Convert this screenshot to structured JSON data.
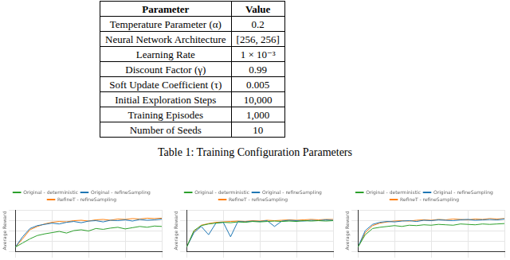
{
  "table": {
    "header": [
      "Parameter",
      "Value"
    ],
    "rows": [
      [
        "Temperature Parameter (α)",
        "0.2"
      ],
      [
        "Neural Network Architecture",
        "[256, 256]"
      ],
      [
        "Learning Rate",
        "1 × 10⁻³"
      ],
      [
        "Discount Factor (γ)",
        "0.99"
      ],
      [
        "Soft Update Coefficient (τ)",
        "0.005"
      ],
      [
        "Initial Exploration Steps",
        "10,000"
      ],
      [
        "Training Episodes",
        "1,000"
      ],
      [
        "Number of Seeds",
        "10"
      ]
    ]
  },
  "caption": "Table 1: Training Configuration Parameters",
  "chart_data": [
    {
      "type": "line",
      "ylabel": "Average Reward",
      "legend": "top",
      "grid": true,
      "tick_labels": false,
      "x": [
        0,
        50,
        100,
        150,
        200,
        250,
        300,
        350,
        400,
        450,
        500,
        550,
        600,
        650,
        700,
        750,
        800,
        850,
        900,
        950,
        1000
      ],
      "xlim": [
        0,
        1000
      ],
      "xticks": [
        0,
        250,
        500,
        750,
        1000
      ],
      "ylim": [
        0,
        100
      ],
      "yticks": [
        0,
        25,
        50,
        75,
        100
      ],
      "series": [
        {
          "name": "Original - deterministic",
          "color": "#2ca02c",
          "values": [
            10,
            20,
            30,
            38,
            42,
            45,
            48,
            44,
            50,
            52,
            49,
            55,
            53,
            56,
            58,
            54,
            57,
            60,
            58,
            61,
            60
          ]
        },
        {
          "name": "Original - refineSampling",
          "color": "#1f77b4",
          "values": [
            10,
            35,
            55,
            62,
            65,
            68,
            66,
            70,
            72,
            69,
            73,
            74,
            71,
            75,
            74,
            76,
            73,
            77,
            75,
            76,
            78
          ]
        },
        {
          "name": "RefineT - refineSampling",
          "color": "#ff7f0e",
          "values": [
            10,
            30,
            52,
            60,
            66,
            70,
            72,
            71,
            74,
            75,
            73,
            76,
            77,
            75,
            78,
            77,
            79,
            78,
            80,
            79,
            80
          ]
        }
      ]
    },
    {
      "type": "line",
      "ylabel": "Average Reward",
      "legend": "top",
      "grid": true,
      "tick_labels": false,
      "x": [
        0,
        50,
        100,
        150,
        200,
        250,
        300,
        350,
        400,
        450,
        500,
        550,
        600,
        650,
        700,
        750,
        800,
        850,
        900,
        950,
        1000
      ],
      "xlim": [
        0,
        1000
      ],
      "xticks": [
        0,
        250,
        500,
        750,
        1000
      ],
      "ylim": [
        0,
        100
      ],
      "yticks": [
        0,
        25,
        50,
        75,
        100
      ],
      "series": [
        {
          "name": "Original - deterministic",
          "color": "#2ca02c",
          "values": [
            10,
            50,
            62,
            66,
            68,
            70,
            69,
            71,
            70,
            72,
            71,
            72,
            73,
            72,
            73,
            72,
            74,
            73,
            74,
            73,
            74
          ]
        },
        {
          "name": "Original - refineSampling",
          "color": "#1f77b4",
          "values": [
            10,
            45,
            60,
            40,
            68,
            70,
            35,
            72,
            71,
            73,
            72,
            74,
            60,
            73,
            75,
            74,
            73,
            75,
            74,
            76,
            75
          ]
        },
        {
          "name": "RefineT - refineSampling",
          "color": "#ff7f0e",
          "values": [
            10,
            48,
            63,
            67,
            70,
            71,
            72,
            73,
            72,
            74,
            73,
            75,
            74,
            75,
            76,
            75,
            76,
            77,
            76,
            77,
            77
          ]
        }
      ]
    },
    {
      "type": "line",
      "ylabel": "Average Reward",
      "legend": "top",
      "grid": true,
      "tick_labels": false,
      "x": [
        0,
        50,
        100,
        150,
        200,
        250,
        300,
        350,
        400,
        450,
        500,
        550,
        600,
        650,
        700,
        750,
        800,
        850,
        900,
        950,
        1000
      ],
      "xlim": [
        0,
        1000
      ],
      "xticks": [
        0,
        250,
        500,
        750,
        1000
      ],
      "ylim": [
        0,
        100
      ],
      "yticks": [
        0,
        25,
        50,
        75,
        100
      ],
      "series": [
        {
          "name": "Original - deterministic",
          "color": "#2ca02c",
          "values": [
            10,
            40,
            55,
            58,
            60,
            62,
            60,
            63,
            62,
            64,
            63,
            65,
            64,
            63,
            66,
            65,
            64,
            66,
            65,
            66,
            67
          ]
        },
        {
          "name": "Original - refineSampling",
          "color": "#1f77b4",
          "values": [
            10,
            50,
            65,
            70,
            72,
            71,
            73,
            74,
            72,
            75,
            74,
            76,
            75,
            74,
            76,
            77,
            75,
            76,
            77,
            76,
            78
          ]
        },
        {
          "name": "RefineT - refineSampling",
          "color": "#ff7f0e",
          "values": [
            10,
            45,
            62,
            68,
            71,
            73,
            74,
            73,
            75,
            76,
            75,
            77,
            76,
            78,
            77,
            76,
            78,
            77,
            79,
            78,
            79
          ]
        }
      ]
    }
  ]
}
